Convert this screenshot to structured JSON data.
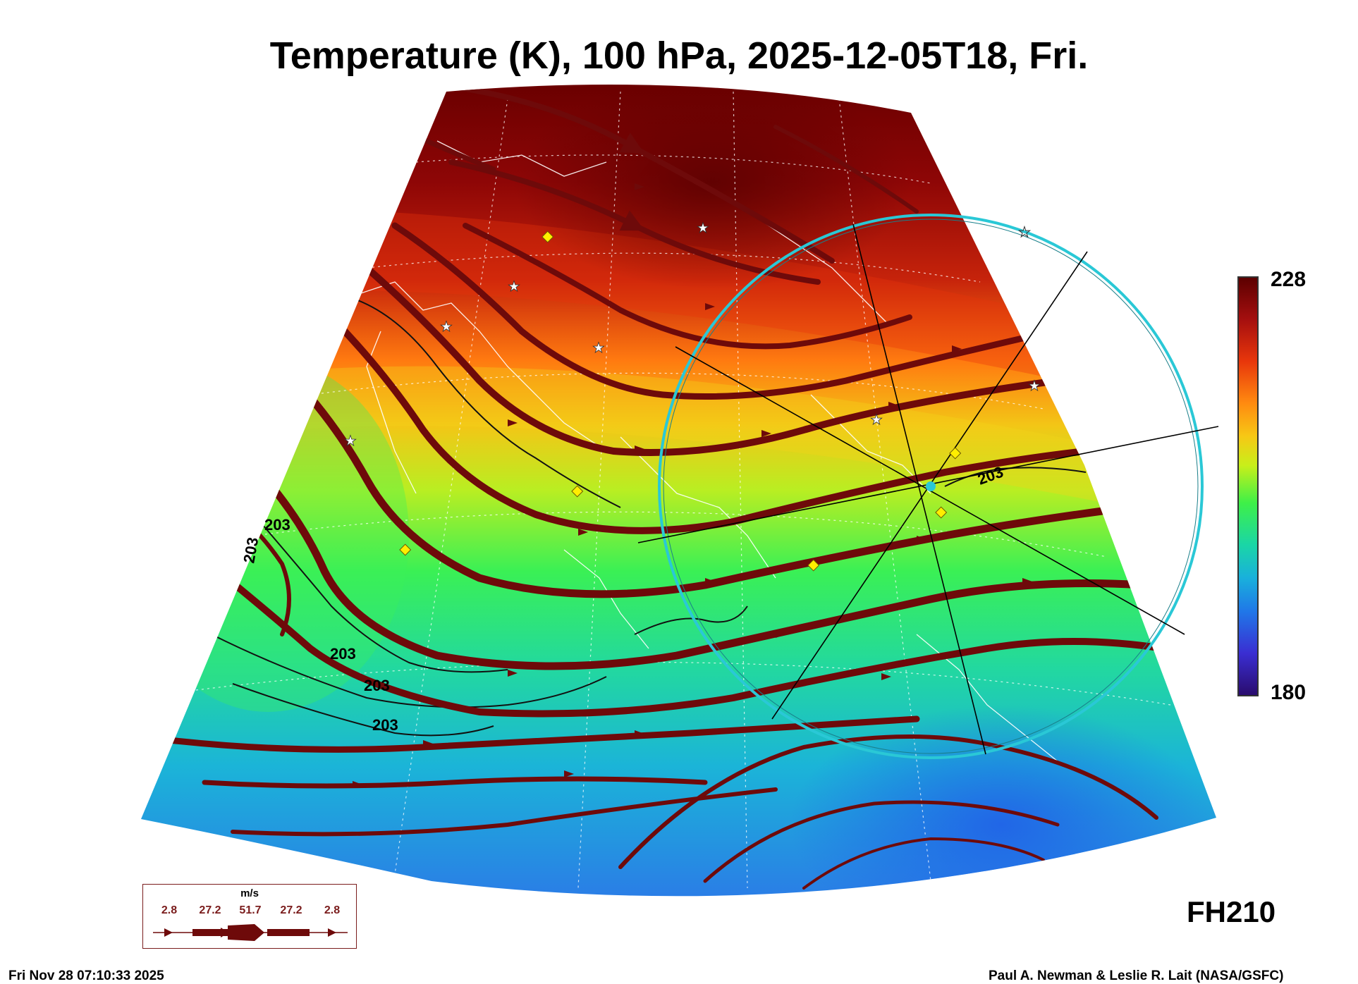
{
  "title": "Temperature (K), 100 hPa, 2025-12-05T18, Fri.",
  "colorbar": {
    "max_label": "228",
    "min_label": "180",
    "colors": [
      "#5c0000",
      "#a50f0f",
      "#e8360b",
      "#ff8a10",
      "#f7c815",
      "#c8ef1a",
      "#3ef048",
      "#1ad6a6",
      "#19b0dc",
      "#2077e8",
      "#3a2ed2",
      "#2a0c6e"
    ]
  },
  "contour_labels": [
    "203",
    "203",
    "203",
    "203",
    "203",
    "203"
  ],
  "forecast_hour": "FH210",
  "legend": {
    "unit": "m/s",
    "values": [
      "2.8",
      "27.2",
      "51.7",
      "27.2",
      "2.8"
    ]
  },
  "footer": {
    "timestamp": "Fri Nov 28 07:10:33 2025",
    "credit": "Paul A. Newman & Leslie R. Lait (NASA/GSFC)"
  },
  "colors": {
    "streamline": "#6e0a0a",
    "range_ring": "#2ac8d6",
    "marker_diamond": "#ffee00"
  }
}
